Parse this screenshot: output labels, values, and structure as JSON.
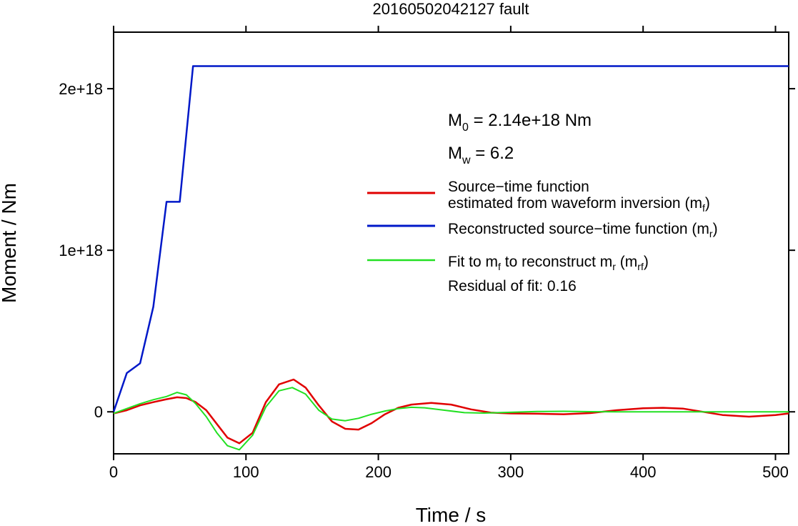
{
  "chart_data": {
    "type": "line",
    "title": "20160502042127 fault",
    "xlabel": "Time / s",
    "ylabel": "Moment / Nm",
    "xlim": [
      0,
      510
    ],
    "ylim": [
      -2.6e+17,
      2.35e+18
    ],
    "xticks": [
      0,
      100,
      200,
      300,
      400,
      500
    ],
    "xtick_labels": [
      "0",
      "100",
      "200",
      "300",
      "400",
      "500"
    ],
    "yticks": [
      0,
      1e+18,
      2e+18
    ],
    "ytick_labels": [
      "0",
      "1e+18",
      "2e+18"
    ],
    "grid": false,
    "annotations": {
      "m0": {
        "main": "M",
        "sub": "0",
        "rest": " = 2.14e+18 Nm"
      },
      "mw": {
        "main": "M",
        "sub": "w",
        "rest": " = 6.2"
      },
      "residual": "Residual of fit: 0.16"
    },
    "legend": {
      "position": "right",
      "entries": [
        {
          "lines": [
            "Source−time function",
            "estimated from waveform inversion (m"
          ],
          "sub": "f",
          "tail": ")",
          "color": "#e00000"
        },
        {
          "lines": [
            "Reconstructed source−time function (m"
          ],
          "sub": "r",
          "tail": ")",
          "color": "#0018c8"
        },
        {
          "lines": [
            "Fit to m"
          ],
          "sub": "f",
          "mid": " to reconstruct m",
          "sub2": "r",
          "mid2": " (m",
          "sub3": "rf",
          "tail": ")",
          "color": "#22e022"
        }
      ]
    },
    "series": [
      {
        "color": "#0018c8",
        "x": [
          0,
          10,
          20,
          30,
          40,
          50,
          60,
          510
        ],
        "y": [
          0,
          2.4e+17,
          3e+17,
          6.5e+17,
          1.3e+18,
          1.3e+18,
          2.14e+18,
          2.14e+18
        ]
      },
      {
        "color": "#e00000",
        "x": [
          0,
          10,
          20,
          30,
          40,
          48,
          55,
          62,
          70,
          78,
          86,
          95,
          105,
          115,
          125,
          136,
          145,
          155,
          165,
          175,
          185,
          195,
          205,
          215,
          225,
          240,
          255,
          270,
          285,
          300,
          320,
          340,
          360,
          380,
          400,
          415,
          430,
          445,
          460,
          480,
          500,
          510
        ],
        "y": [
          -1e+16,
          1e+16,
          4e+16,
          6e+16,
          7.8e+16,
          9e+16,
          8.5e+16,
          6e+16,
          1e+16,
          -7.5e+16,
          -1.6e+17,
          -1.95e+17,
          -1.3e+17,
          6e+16,
          1.7e+17,
          2e+17,
          1.5e+17,
          4e+16,
          -6e+16,
          -1.05e+17,
          -1.1e+17,
          -7e+16,
          -1.5e+16,
          2.5e+16,
          4.5e+16,
          5.5e+16,
          4.5e+16,
          1.5e+16,
          -5000000000000000.0,
          -1e+16,
          -1.2e+16,
          -1.5e+16,
          -8000000000000000.0,
          1e+16,
          2.2e+16,
          2.5e+16,
          2e+16,
          0,
          -2e+16,
          -3e+16,
          -2e+16,
          -1e+16
        ]
      },
      {
        "color": "#22e022",
        "x": [
          0,
          10,
          20,
          30,
          40,
          48,
          55,
          62,
          70,
          78,
          86,
          95,
          105,
          115,
          125,
          135,
          145,
          155,
          165,
          175,
          185,
          195,
          205,
          215,
          225,
          235,
          250,
          265,
          280,
          300,
          320,
          340,
          360,
          380,
          400,
          420,
          440,
          460,
          480,
          500,
          510
        ],
        "y": [
          -1e+16,
          2e+16,
          5e+16,
          7.5e+16,
          9.5e+16,
          1.2e+17,
          1.05e+17,
          5e+16,
          -3e+16,
          -1.3e+17,
          -2.1e+17,
          -2.35e+17,
          -1.45e+17,
          3e+16,
          1.3e+17,
          1.5e+17,
          1.1e+17,
          1e+16,
          -4.5e+16,
          -5.5e+16,
          -4e+16,
          -1.5e+16,
          5000000000000000.0,
          2e+16,
          2.8e+16,
          2.5e+16,
          1e+16,
          -5000000000000000.0,
          -8000000000000000.0,
          -3000000000000000.0,
          2000000000000000.0,
          3000000000000000.0,
          1000000000000000.0,
          0,
          0,
          0,
          0,
          0,
          0,
          0,
          0
        ]
      }
    ]
  }
}
